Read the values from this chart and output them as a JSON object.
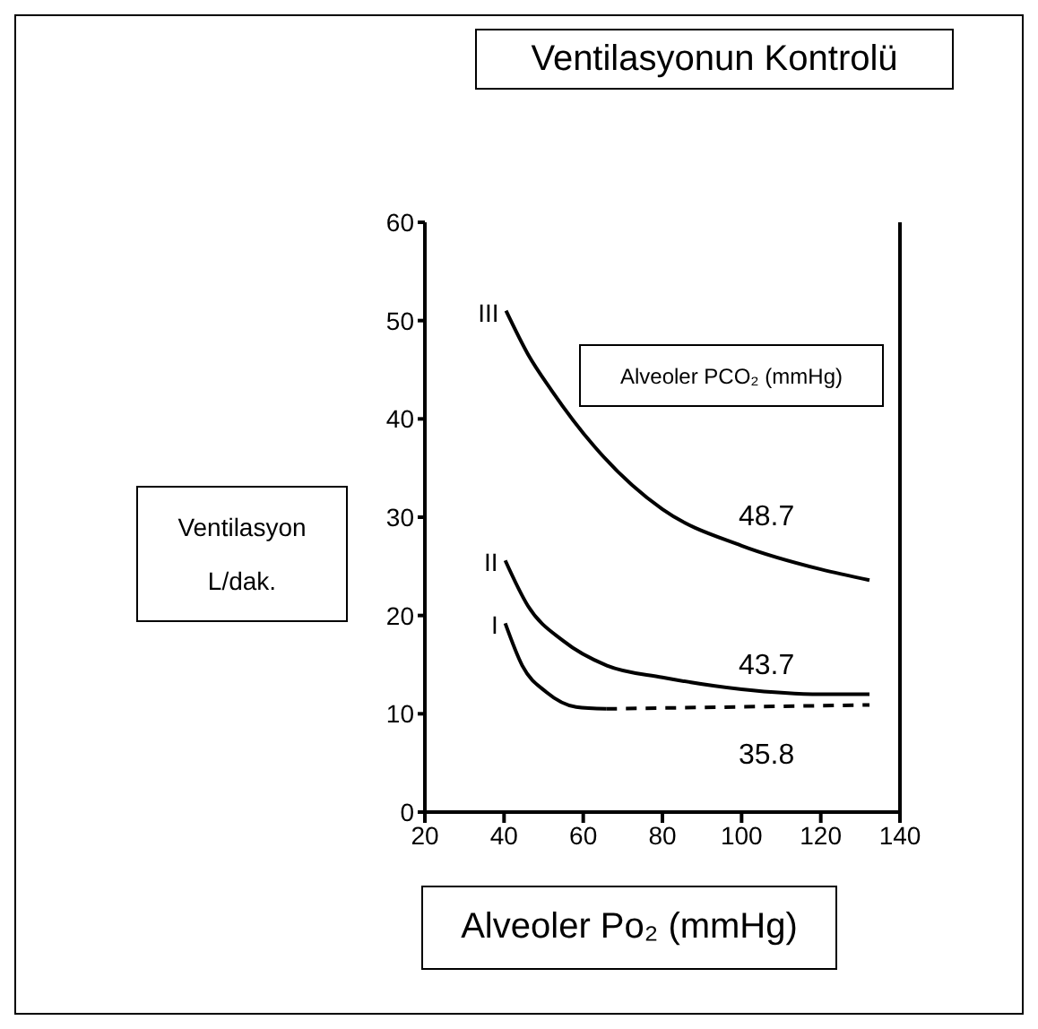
{
  "chart_data": {
    "type": "line",
    "title": "Ventilasyonun Kontrolü",
    "xlabel": "Alveoler Po₂ (mmHg)",
    "ylabel": "Ventilasyon L/dak.",
    "xlim": [
      20,
      140
    ],
    "xticks": [
      20,
      40,
      60,
      80,
      100,
      120,
      140
    ],
    "ylim": [
      0,
      60
    ],
    "yticks": [
      0,
      10,
      20,
      30,
      40,
      50,
      60
    ],
    "marker": "none",
    "series": [
      {
        "name": "III",
        "color": "#000000",
        "line_style": "solid",
        "x": [
          40.5,
          46,
          52,
          62.8,
          80,
          100,
          120,
          132.3
        ],
        "values": [
          51,
          46.6,
          42.9,
          37.2,
          30.8,
          27.1,
          24.7,
          23.6
        ]
      },
      {
        "name": "II",
        "color": "#000000",
        "line_style": "solid",
        "x": [
          40.3,
          46,
          55,
          66,
          80,
          100,
          120,
          132.3
        ],
        "values": [
          25.6,
          21,
          17.4,
          14.9,
          13.7,
          12.5,
          12,
          12
        ]
      },
      {
        "name": "I",
        "color": "#000000",
        "line_style": "solid",
        "x": [
          40.3,
          44.6,
          50.7,
          58.2,
          65.8
        ],
        "values": [
          19.2,
          14.9,
          12.2,
          10.7,
          10.5
        ]
      },
      {
        "color": "#000000",
        "line_style": "dashed",
        "x": [
          65.8,
          132.3
        ],
        "values": [
          10.5,
          10.9
        ]
      }
    ],
    "annotations": [
      "Alveoler PCO₂ (mmHg)",
      "48.7",
      "43.7",
      "35.8"
    ]
  }
}
